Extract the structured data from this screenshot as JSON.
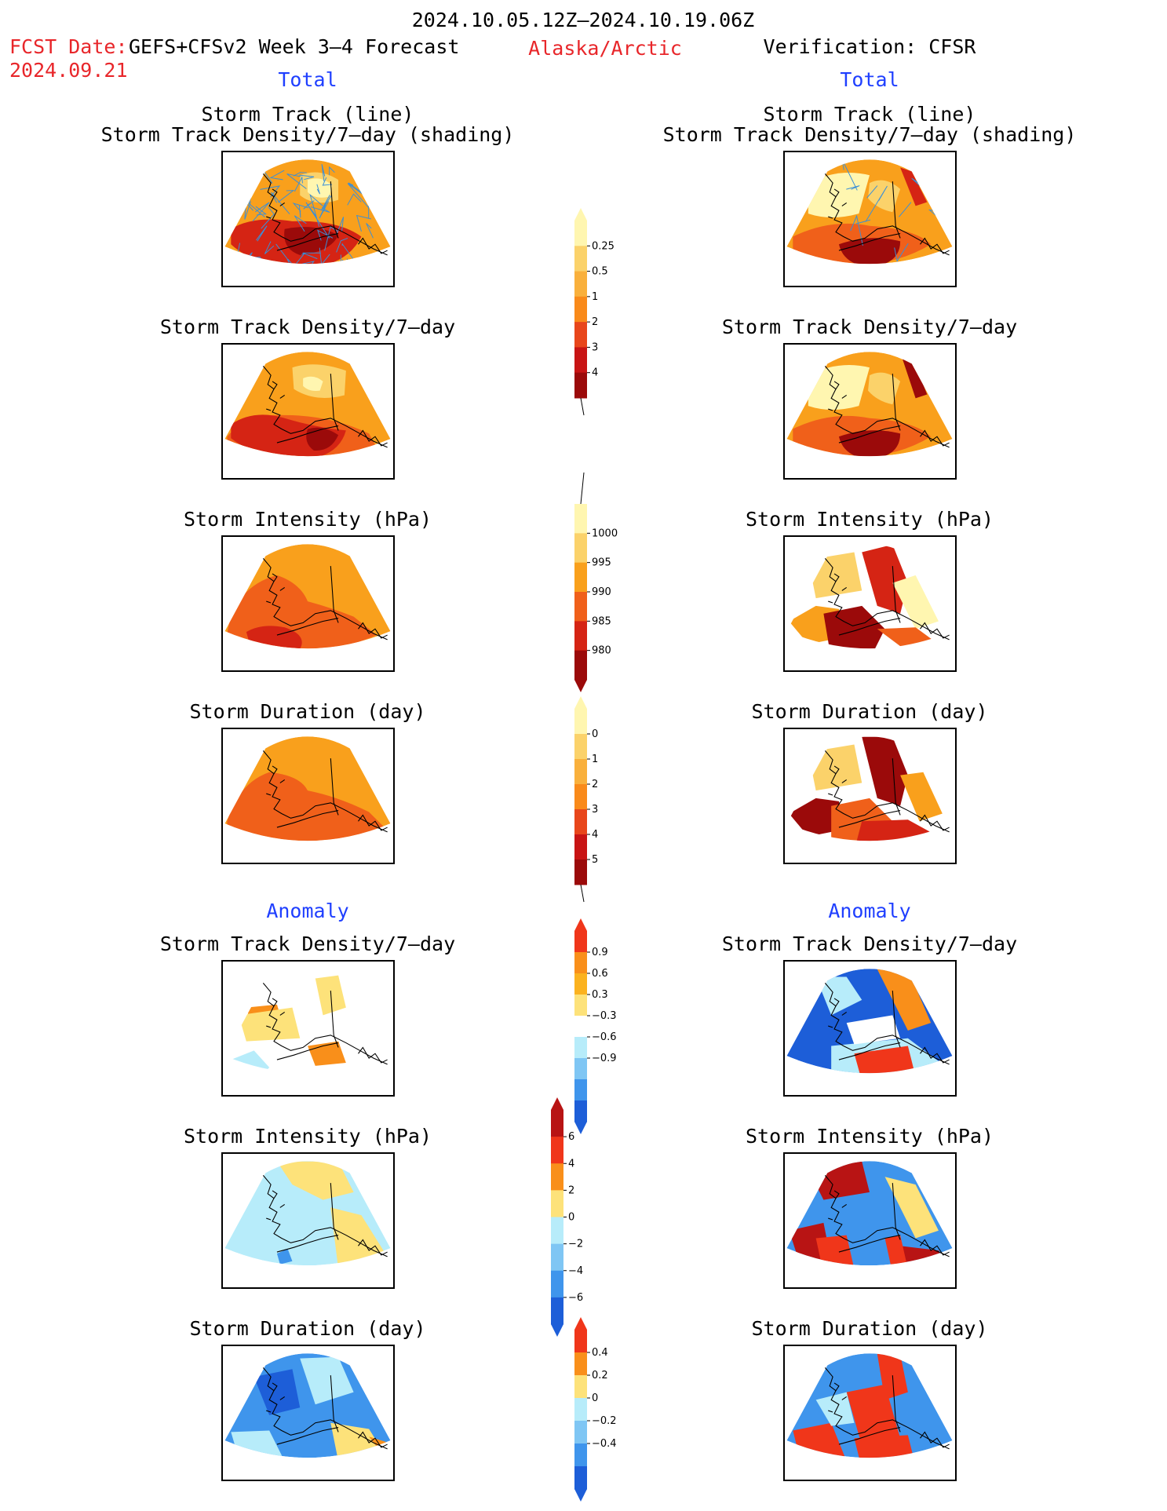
{
  "header": {
    "period": "2024.10.05.12Z–2024.10.19.06Z",
    "fcst_date_label": "FCST Date:",
    "model": "GEFS+CFSv2 Week 3–4 Forecast",
    "fcst_date": "2024.09.21",
    "region": "Alaska/Arctic",
    "verification": "Verification: CFSR"
  },
  "sections": {
    "total": "Total",
    "anomaly": "Anomaly"
  },
  "panel_titles": {
    "track_line": "Storm Track (line)",
    "track_shading": "Storm Track Density/7–day (shading)",
    "density": "Storm Track Density/7–day",
    "intensity": "Storm Intensity (hPa)",
    "duration": "Storm Duration (day)"
  },
  "colorbars": {
    "density_total": {
      "labels": [
        "0.25",
        "0.5",
        "1",
        "2",
        "3",
        "4"
      ],
      "colors": [
        "#fff6b0",
        "#fbd26a",
        "#f9b03c",
        "#f98a1a",
        "#e8461b",
        "#c81414",
        "#9b0a0a"
      ]
    },
    "intensity_total": {
      "labels": [
        "1000",
        "995",
        "990",
        "985",
        "980"
      ],
      "colors": [
        "#fff6b0",
        "#fbd26a",
        "#f9a01c",
        "#f0601a",
        "#d52414",
        "#9b0a0a"
      ]
    },
    "duration_total": {
      "labels": [
        "0",
        "1",
        "2",
        "3",
        "4",
        "5"
      ],
      "colors": [
        "#fff6b0",
        "#fbd26a",
        "#f9b03c",
        "#f98a1a",
        "#e8461b",
        "#c81414",
        "#9b0a0a"
      ]
    },
    "density_anom": {
      "labels": [
        "0.9",
        "0.6",
        "0.3",
        "−0.3",
        "−0.6",
        "−0.9"
      ],
      "colors": [
        "#f0361a",
        "#f98f1a",
        "#fbb21f",
        "#fde27a",
        "#ffffff",
        "#b7ecfa",
        "#7fc6f4",
        "#3f95ec",
        "#1d5ed8"
      ]
    },
    "intensity_anom": {
      "labels": [
        "6",
        "4",
        "2",
        "0",
        "−2",
        "−4",
        "−6"
      ],
      "colors": [
        "#b81414",
        "#f0361a",
        "#f98f1a",
        "#fde27a",
        "#b7ecfa",
        "#7fc6f4",
        "#3f95ec",
        "#1d5ed8"
      ]
    },
    "duration_anom": {
      "labels": [
        "0.4",
        "0.2",
        "0",
        "−0.2",
        "−0.4"
      ],
      "colors": [
        "#f0361a",
        "#f98f1a",
        "#fde27a",
        "#b7ecfa",
        "#7fc6f4",
        "#3f95ec",
        "#1d5ed8"
      ]
    }
  },
  "colors": {
    "total_palette": [
      "#fff6b0",
      "#fbd26a",
      "#f9a01c",
      "#f0601a",
      "#d52414",
      "#9b0a0a"
    ],
    "anom_palette": [
      "#1d5ed8",
      "#3f95ec",
      "#b7ecfa",
      "#ffffff",
      "#fde27a",
      "#f98f1a",
      "#f0361a",
      "#b81414"
    ],
    "track_lines": "#3a8fd8"
  }
}
